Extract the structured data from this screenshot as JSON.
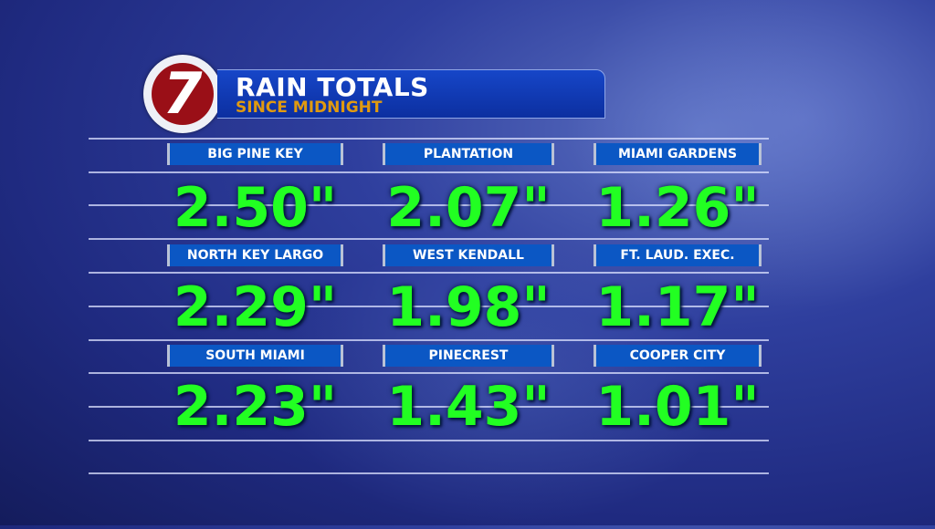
{
  "header": {
    "logo_text": "7",
    "title": "RAIN TOTALS",
    "subtitle": "SINCE MIDNIGHT"
  },
  "colors": {
    "value": "#22ff22",
    "label_bg": "#0b57c4",
    "subtitle": "#e09a10",
    "logo_red": "#9a0f17"
  },
  "locations": [
    {
      "name": "BIG PINE KEY",
      "total": "2.50\""
    },
    {
      "name": "PLANTATION",
      "total": "2.07\""
    },
    {
      "name": "MIAMI GARDENS",
      "total": "1.26\""
    },
    {
      "name": "NORTH KEY LARGO",
      "total": "2.29\""
    },
    {
      "name": "WEST KENDALL",
      "total": "1.98\""
    },
    {
      "name": "FT. LAUD. EXEC.",
      "total": "1.17\""
    },
    {
      "name": "SOUTH MIAMI",
      "total": "2.23\""
    },
    {
      "name": "PINECREST",
      "total": "1.43\""
    },
    {
      "name": "COOPER CITY",
      "total": "1.01\""
    }
  ]
}
